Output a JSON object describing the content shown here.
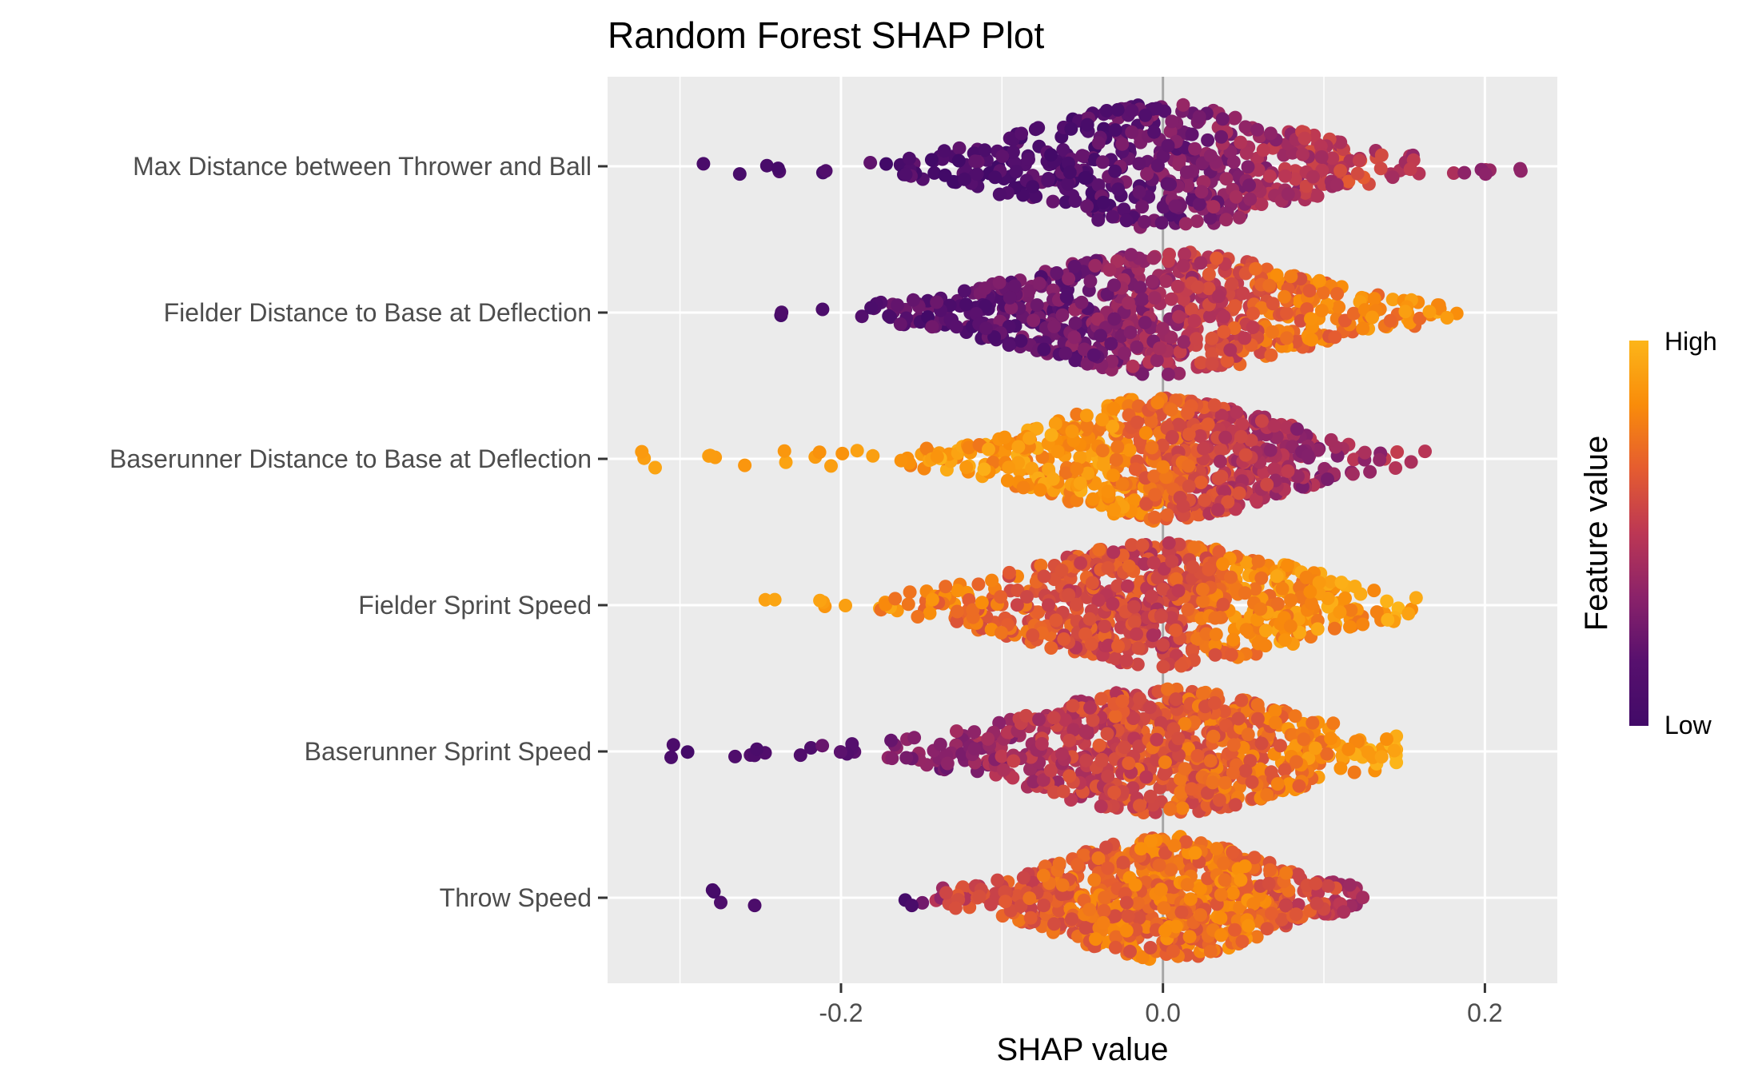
{
  "chart_data": {
    "type": "scatter",
    "subtype": "beeswarm",
    "title": "Random Forest SHAP Plot",
    "xlabel": "SHAP value",
    "ylabel": "",
    "xlim": [
      -0.345,
      0.245
    ],
    "x_ticks": [
      {
        "value": -0.2,
        "label": "-0.2"
      },
      {
        "value": 0.0,
        "label": "0.0"
      },
      {
        "value": 0.2,
        "label": "0.2"
      }
    ],
    "grid": true,
    "zero_line": true,
    "features": [
      {
        "name": "Max Distance between Thrower and Ball",
        "min": -0.28,
        "max": 0.22,
        "center": 0.0,
        "spread": 0.075,
        "dens_width": 0.19,
        "n": 520,
        "lone_points": [
          -0.28,
          -0.26,
          -0.24,
          -0.21,
          0.2,
          0.22
        ],
        "color_map": [
          [
            -0.28,
            0.05
          ],
          [
            -0.05,
            0.1
          ],
          [
            0.05,
            0.35
          ],
          [
            0.12,
            0.55
          ],
          [
            0.22,
            0.3
          ]
        ]
      },
      {
        "name": "Fielder Distance to Base at Deflection",
        "min": -0.24,
        "max": 0.185,
        "center": 0.0,
        "spread": 0.08,
        "dens_width": 0.2,
        "n": 700,
        "lone_points": [
          -0.24,
          -0.21,
          -0.19,
          -0.18
        ],
        "color_map": [
          [
            -0.24,
            0.05
          ],
          [
            -0.07,
            0.2
          ],
          [
            0.0,
            0.4
          ],
          [
            0.07,
            0.7
          ],
          [
            0.18,
            0.85
          ]
        ]
      },
      {
        "name": "Baserunner Distance to Base at Deflection",
        "min": -0.32,
        "max": 0.165,
        "center": 0.0,
        "spread": 0.06,
        "dens_width": 0.17,
        "n": 700,
        "lone_points": [
          -0.32,
          -0.31,
          -0.28,
          -0.26,
          -0.24,
          -0.21,
          -0.19,
          -0.16,
          -0.14,
          -0.12,
          -0.09
        ],
        "color_map": [
          [
            -0.32,
            0.9
          ],
          [
            -0.04,
            0.85
          ],
          [
            0.03,
            0.55
          ],
          [
            0.1,
            0.35
          ],
          [
            0.165,
            0.45
          ]
        ]
      },
      {
        "name": "Fielder Sprint Speed",
        "min": -0.245,
        "max": 0.16,
        "center": 0.0,
        "spread": 0.07,
        "dens_width": 0.2,
        "n": 650,
        "lone_points": [
          -0.245,
          -0.21,
          -0.2,
          -0.13
        ],
        "color_map": [
          [
            -0.245,
            0.95
          ],
          [
            -0.05,
            0.6
          ],
          [
            0.0,
            0.55
          ],
          [
            0.05,
            0.8
          ],
          [
            0.16,
            0.9
          ]
        ]
      },
      {
        "name": "Baserunner Sprint Speed",
        "min": -0.3,
        "max": 0.145,
        "center": 0.0,
        "spread": 0.07,
        "dens_width": 0.2,
        "n": 750,
        "lone_points": [
          -0.3,
          -0.26,
          -0.25,
          -0.23,
          -0.2,
          -0.16,
          -0.14,
          0.13,
          0.14
        ],
        "color_map": [
          [
            -0.3,
            0.05
          ],
          [
            -0.2,
            0.15
          ],
          [
            -0.1,
            0.4
          ],
          [
            0.0,
            0.65
          ],
          [
            0.06,
            0.7
          ],
          [
            0.145,
            0.95
          ]
        ]
      },
      {
        "name": "Throw Speed",
        "min": -0.28,
        "max": 0.12,
        "center": 0.0,
        "spread": 0.055,
        "dens_width": 0.15,
        "n": 720,
        "lone_points": [
          -0.28,
          -0.275,
          -0.25,
          -0.16,
          -0.13,
          -0.11,
          0.1,
          0.12
        ],
        "color_map": [
          [
            -0.28,
            0.05
          ],
          [
            -0.16,
            0.08
          ],
          [
            -0.13,
            0.55
          ],
          [
            -0.05,
            0.7
          ],
          [
            0.05,
            0.75
          ],
          [
            0.12,
            0.45
          ]
        ]
      }
    ],
    "legend": {
      "title": "Feature value",
      "high_label": "High",
      "low_label": "Low",
      "position": "right",
      "colors": [
        "#fcb519",
        "#f98c0a",
        "#e55c30",
        "#bc3754",
        "#8a226a",
        "#57106e",
        "#420a68"
      ]
    }
  }
}
